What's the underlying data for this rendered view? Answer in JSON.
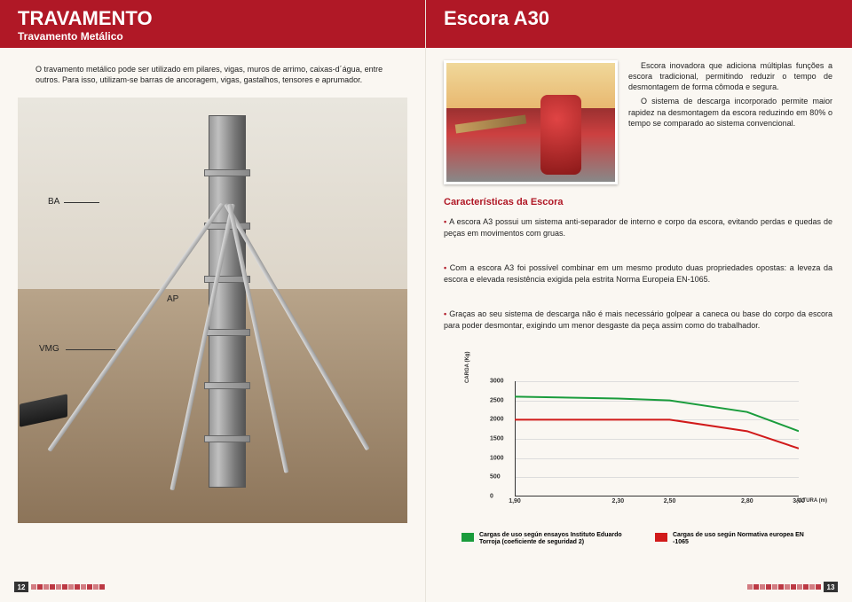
{
  "left": {
    "title": "TRAVAMENTO",
    "subtitle": "Travamento Metálico",
    "intro": "O travamento metálico pode ser utilizado em pilares, vigas, muros de arrimo, caixas-d´água, entre outros. Para isso, utilizam-se barras de ancoragem, vigas, gastalhos, tensores e aprumador.",
    "annotations": {
      "ba": "BA",
      "ap": "AP",
      "vmg": "VMG"
    },
    "page_number": "12",
    "footer_squares": 12
  },
  "right": {
    "title": "Escora A30",
    "intro_p1": "Escora inovadora que adiciona múltiplas funções a escora tradicional, permitindo reduzir o tempo de desmontagem de forma cômoda e segura.",
    "intro_p2": "O sistema de descarga incorporado permite maior rapidez na desmontagem da escora reduzindo em 80% o tempo se comparado ao sistema convencional.",
    "section_title": "Características da Escora",
    "bullets": [
      "A escora A3 possui um sistema anti-separador de interno e corpo da escora, evitando perdas e quedas de peças em movimentos com gruas.",
      "Com a escora A3 foi possível combinar em um mesmo produto duas propriedades opostas: a leveza da escora e elevada resistência exigida pela estrita Norma Europeia EN-1065.",
      "Graças ao seu sistema de descarga não é mais necessário golpear a caneca ou base do corpo da escora para poder desmontar, exigindo um menor desgaste da peça assim como do trabalhador."
    ],
    "chart": {
      "type": "line",
      "ylabel": "CARGA (Kg)",
      "xlabel": "ALTURA (m)",
      "ylim": [
        0,
        3000
      ],
      "ytick_step": 500,
      "xlim": [
        1.9,
        3.0
      ],
      "xticks": [
        "1,90",
        "2,30",
        "2,50",
        "2,80",
        "3,00"
      ],
      "xvals": [
        1.9,
        2.3,
        2.5,
        2.8,
        3.0
      ],
      "series": [
        {
          "name": "torroja",
          "color": "#1a9c3c",
          "points": [
            [
              1.9,
              2600
            ],
            [
              2.3,
              2550
            ],
            [
              2.5,
              2500
            ],
            [
              2.8,
              2200
            ],
            [
              3.0,
              1700
            ]
          ]
        },
        {
          "name": "en1065",
          "color": "#d11a1a",
          "points": [
            [
              1.9,
              2000
            ],
            [
              2.3,
              2000
            ],
            [
              2.5,
              2000
            ],
            [
              2.8,
              1700
            ],
            [
              3.0,
              1250
            ]
          ]
        }
      ],
      "background_color": "#faf7f2",
      "grid_color": "#dddddd",
      "line_width": 2
    },
    "legend": [
      {
        "color": "#1a9c3c",
        "label": "Cargas de uso según ensayos Instituto Eduardo Torroja (coeficiente de seguridad 2)"
      },
      {
        "color": "#d11a1a",
        "label": "Cargas de uso según Normativa europea EN -1065"
      }
    ],
    "page_number": "13",
    "footer_squares": 12
  }
}
